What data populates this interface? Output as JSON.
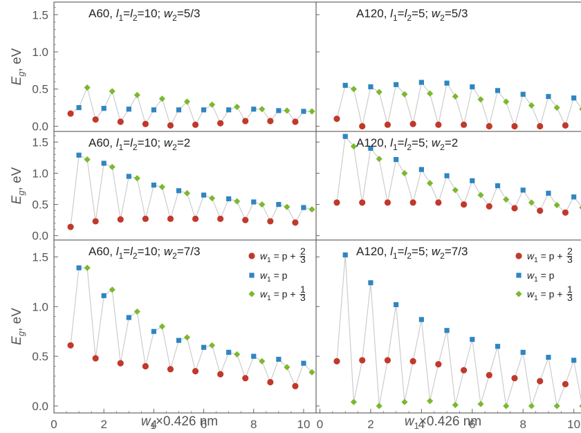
{
  "colors": {
    "p_plus_2_3": "#c0392b",
    "p": "#2e86c1",
    "p_plus_1_3": "#7cb82f",
    "line": "#cccccc"
  },
  "legend": [
    {
      "key": "p_plus_2_3",
      "shape": "circle",
      "prefix": "w",
      "sub": "1",
      "mid": " = p + ",
      "num": "2",
      "den": "3"
    },
    {
      "key": "p",
      "shape": "square",
      "prefix": "w",
      "sub": "1",
      "mid": " = p",
      "num": "",
      "den": ""
    },
    {
      "key": "p_plus_1_3",
      "shape": "diamond",
      "prefix": "w",
      "sub": "1",
      "mid": " = p + ",
      "num": "1",
      "den": "3"
    }
  ],
  "chart_data": [
    {
      "type": "line",
      "panel": "top-left",
      "title": "A60, l1=l2=10; w2=5/3",
      "ylabel": "Eg, eV",
      "xlabel": "",
      "xlim": [
        0,
        10.5
      ],
      "ylim": [
        -0.07,
        1.67
      ],
      "xticks": [],
      "yticks": [
        "0.0",
        "0.5",
        "1.0",
        "1.5"
      ],
      "points": [
        {
          "x": 0.667,
          "y": 0.17,
          "s": "p_plus_2_3"
        },
        {
          "x": 1.0,
          "y": 0.25,
          "s": "p"
        },
        {
          "x": 1.333,
          "y": 0.52,
          "s": "p_plus_1_3"
        },
        {
          "x": 1.667,
          "y": 0.09,
          "s": "p_plus_2_3"
        },
        {
          "x": 2.0,
          "y": 0.24,
          "s": "p"
        },
        {
          "x": 2.333,
          "y": 0.47,
          "s": "p_plus_1_3"
        },
        {
          "x": 2.667,
          "y": 0.06,
          "s": "p_plus_2_3"
        },
        {
          "x": 3.0,
          "y": 0.23,
          "s": "p"
        },
        {
          "x": 3.333,
          "y": 0.42,
          "s": "p_plus_1_3"
        },
        {
          "x": 3.667,
          "y": 0.03,
          "s": "p_plus_2_3"
        },
        {
          "x": 4.0,
          "y": 0.22,
          "s": "p"
        },
        {
          "x": 4.333,
          "y": 0.37,
          "s": "p_plus_1_3"
        },
        {
          "x": 4.667,
          "y": 0.01,
          "s": "p_plus_2_3"
        },
        {
          "x": 5.0,
          "y": 0.22,
          "s": "p"
        },
        {
          "x": 5.333,
          "y": 0.33,
          "s": "p_plus_1_3"
        },
        {
          "x": 5.667,
          "y": 0.02,
          "s": "p_plus_2_3"
        },
        {
          "x": 6.0,
          "y": 0.22,
          "s": "p"
        },
        {
          "x": 6.333,
          "y": 0.29,
          "s": "p_plus_1_3"
        },
        {
          "x": 6.667,
          "y": 0.04,
          "s": "p_plus_2_3"
        },
        {
          "x": 7.0,
          "y": 0.22,
          "s": "p"
        },
        {
          "x": 7.333,
          "y": 0.26,
          "s": "p_plus_1_3"
        },
        {
          "x": 7.667,
          "y": 0.07,
          "s": "p_plus_2_3"
        },
        {
          "x": 8.0,
          "y": 0.23,
          "s": "p"
        },
        {
          "x": 8.333,
          "y": 0.23,
          "s": "p_plus_1_3"
        },
        {
          "x": 8.667,
          "y": 0.07,
          "s": "p_plus_2_3"
        },
        {
          "x": 9.0,
          "y": 0.21,
          "s": "p"
        },
        {
          "x": 9.333,
          "y": 0.21,
          "s": "p_plus_1_3"
        },
        {
          "x": 9.667,
          "y": 0.06,
          "s": "p_plus_2_3"
        },
        {
          "x": 10.0,
          "y": 0.2,
          "s": "p"
        },
        {
          "x": 10.333,
          "y": 0.2,
          "s": "p_plus_1_3"
        }
      ]
    },
    {
      "type": "line",
      "panel": "top-right",
      "title": "A120, l1=l2=5; w2=5/3",
      "ylabel": "",
      "xlabel": "",
      "xlim": [
        -0.15,
        10.5
      ],
      "ylim": [
        -0.07,
        1.67
      ],
      "xticks": [],
      "yticks": [],
      "points": [
        {
          "x": 0.667,
          "y": 0.1,
          "s": "p_plus_2_3"
        },
        {
          "x": 1.0,
          "y": 0.55,
          "s": "p"
        },
        {
          "x": 1.333,
          "y": 0.5,
          "s": "p_plus_1_3"
        },
        {
          "x": 1.667,
          "y": 0.0,
          "s": "p_plus_2_3"
        },
        {
          "x": 2.0,
          "y": 0.53,
          "s": "p"
        },
        {
          "x": 2.333,
          "y": 0.46,
          "s": "p_plus_1_3"
        },
        {
          "x": 2.667,
          "y": 0.02,
          "s": "p_plus_2_3"
        },
        {
          "x": 3.0,
          "y": 0.56,
          "s": "p"
        },
        {
          "x": 3.333,
          "y": 0.43,
          "s": "p_plus_1_3"
        },
        {
          "x": 3.667,
          "y": 0.03,
          "s": "p_plus_2_3"
        },
        {
          "x": 4.0,
          "y": 0.59,
          "s": "p"
        },
        {
          "x": 4.333,
          "y": 0.44,
          "s": "p_plus_1_3"
        },
        {
          "x": 4.667,
          "y": 0.02,
          "s": "p_plus_2_3"
        },
        {
          "x": 5.0,
          "y": 0.58,
          "s": "p"
        },
        {
          "x": 5.333,
          "y": 0.4,
          "s": "p_plus_1_3"
        },
        {
          "x": 5.667,
          "y": 0.02,
          "s": "p_plus_2_3"
        },
        {
          "x": 6.0,
          "y": 0.53,
          "s": "p"
        },
        {
          "x": 6.333,
          "y": 0.36,
          "s": "p_plus_1_3"
        },
        {
          "x": 6.667,
          "y": 0.0,
          "s": "p_plus_2_3"
        },
        {
          "x": 7.0,
          "y": 0.48,
          "s": "p"
        },
        {
          "x": 7.333,
          "y": 0.33,
          "s": "p_plus_1_3"
        },
        {
          "x": 7.667,
          "y": 0.0,
          "s": "p_plus_2_3"
        },
        {
          "x": 8.0,
          "y": 0.43,
          "s": "p"
        },
        {
          "x": 8.333,
          "y": 0.28,
          "s": "p_plus_1_3"
        },
        {
          "x": 8.667,
          "y": 0.0,
          "s": "p_plus_2_3"
        },
        {
          "x": 9.0,
          "y": 0.4,
          "s": "p"
        },
        {
          "x": 9.333,
          "y": 0.25,
          "s": "p_plus_1_3"
        },
        {
          "x": 9.667,
          "y": 0.01,
          "s": "p_plus_2_3"
        },
        {
          "x": 10.0,
          "y": 0.38,
          "s": "p"
        },
        {
          "x": 10.333,
          "y": 0.23,
          "s": "p_plus_1_3"
        }
      ]
    },
    {
      "type": "line",
      "panel": "mid-left",
      "title": "A60, l1=l2=10; w2=2",
      "ylabel": "Eg, eV",
      "xlabel": "",
      "xlim": [
        0,
        10.5
      ],
      "ylim": [
        -0.07,
        1.67
      ],
      "xticks": [],
      "yticks": [
        "0.0",
        "0.5",
        "1.0",
        "1.5"
      ],
      "points": [
        {
          "x": 0.667,
          "y": 0.14,
          "s": "p_plus_2_3"
        },
        {
          "x": 1.0,
          "y": 1.29,
          "s": "p"
        },
        {
          "x": 1.333,
          "y": 1.22,
          "s": "p_plus_1_3"
        },
        {
          "x": 1.667,
          "y": 0.23,
          "s": "p_plus_2_3"
        },
        {
          "x": 2.0,
          "y": 1.16,
          "s": "p"
        },
        {
          "x": 2.333,
          "y": 1.1,
          "s": "p_plus_1_3"
        },
        {
          "x": 2.667,
          "y": 0.26,
          "s": "p_plus_2_3"
        },
        {
          "x": 3.0,
          "y": 0.95,
          "s": "p"
        },
        {
          "x": 3.333,
          "y": 0.92,
          "s": "p_plus_1_3"
        },
        {
          "x": 3.667,
          "y": 0.27,
          "s": "p_plus_2_3"
        },
        {
          "x": 4.0,
          "y": 0.81,
          "s": "p"
        },
        {
          "x": 4.333,
          "y": 0.78,
          "s": "p_plus_1_3"
        },
        {
          "x": 4.667,
          "y": 0.27,
          "s": "p_plus_2_3"
        },
        {
          "x": 5.0,
          "y": 0.72,
          "s": "p"
        },
        {
          "x": 5.333,
          "y": 0.68,
          "s": "p_plus_1_3"
        },
        {
          "x": 5.667,
          "y": 0.27,
          "s": "p_plus_2_3"
        },
        {
          "x": 6.0,
          "y": 0.65,
          "s": "p"
        },
        {
          "x": 6.333,
          "y": 0.6,
          "s": "p_plus_1_3"
        },
        {
          "x": 6.667,
          "y": 0.27,
          "s": "p_plus_2_3"
        },
        {
          "x": 7.0,
          "y": 0.59,
          "s": "p"
        },
        {
          "x": 7.333,
          "y": 0.55,
          "s": "p_plus_1_3"
        },
        {
          "x": 7.667,
          "y": 0.25,
          "s": "p_plus_2_3"
        },
        {
          "x": 8.0,
          "y": 0.54,
          "s": "p"
        },
        {
          "x": 8.333,
          "y": 0.5,
          "s": "p_plus_1_3"
        },
        {
          "x": 8.667,
          "y": 0.23,
          "s": "p_plus_2_3"
        },
        {
          "x": 9.0,
          "y": 0.5,
          "s": "p"
        },
        {
          "x": 9.333,
          "y": 0.46,
          "s": "p_plus_1_3"
        },
        {
          "x": 9.667,
          "y": 0.21,
          "s": "p_plus_2_3"
        },
        {
          "x": 10.0,
          "y": 0.45,
          "s": "p"
        },
        {
          "x": 10.333,
          "y": 0.42,
          "s": "p_plus_1_3"
        }
      ]
    },
    {
      "type": "line",
      "panel": "mid-right",
      "title": "A120, l1=l2=5; w2=2",
      "ylabel": "",
      "xlabel": "",
      "xlim": [
        -0.15,
        10.5
      ],
      "ylim": [
        -0.07,
        1.67
      ],
      "xticks": [],
      "yticks": [],
      "points": [
        {
          "x": 0.667,
          "y": 0.53,
          "s": "p_plus_2_3"
        },
        {
          "x": 1.0,
          "y": 1.59,
          "s": "p"
        },
        {
          "x": 1.333,
          "y": 1.43,
          "s": "p_plus_1_3"
        },
        {
          "x": 1.667,
          "y": 0.53,
          "s": "p_plus_2_3"
        },
        {
          "x": 2.0,
          "y": 1.4,
          "s": "p"
        },
        {
          "x": 2.333,
          "y": 1.23,
          "s": "p_plus_1_3"
        },
        {
          "x": 2.667,
          "y": 0.53,
          "s": "p_plus_2_3"
        },
        {
          "x": 3.0,
          "y": 1.22,
          "s": "p"
        },
        {
          "x": 3.333,
          "y": 1.0,
          "s": "p_plus_1_3"
        },
        {
          "x": 3.667,
          "y": 0.53,
          "s": "p_plus_2_3"
        },
        {
          "x": 4.0,
          "y": 1.06,
          "s": "p"
        },
        {
          "x": 4.333,
          "y": 0.84,
          "s": "p_plus_1_3"
        },
        {
          "x": 4.667,
          "y": 0.53,
          "s": "p_plus_2_3"
        },
        {
          "x": 5.0,
          "y": 0.96,
          "s": "p"
        },
        {
          "x": 5.333,
          "y": 0.73,
          "s": "p_plus_1_3"
        },
        {
          "x": 5.667,
          "y": 0.5,
          "s": "p_plus_2_3"
        },
        {
          "x": 6.0,
          "y": 0.88,
          "s": "p"
        },
        {
          "x": 6.333,
          "y": 0.65,
          "s": "p_plus_1_3"
        },
        {
          "x": 6.667,
          "y": 0.47,
          "s": "p_plus_2_3"
        },
        {
          "x": 7.0,
          "y": 0.8,
          "s": "p"
        },
        {
          "x": 7.333,
          "y": 0.58,
          "s": "p_plus_1_3"
        },
        {
          "x": 7.667,
          "y": 0.44,
          "s": "p_plus_2_3"
        },
        {
          "x": 8.0,
          "y": 0.73,
          "s": "p"
        },
        {
          "x": 8.333,
          "y": 0.53,
          "s": "p_plus_1_3"
        },
        {
          "x": 8.667,
          "y": 0.4,
          "s": "p_plus_2_3"
        },
        {
          "x": 9.0,
          "y": 0.68,
          "s": "p"
        },
        {
          "x": 9.333,
          "y": 0.49,
          "s": "p_plus_1_3"
        },
        {
          "x": 9.667,
          "y": 0.37,
          "s": "p_plus_2_3"
        },
        {
          "x": 10.0,
          "y": 0.62,
          "s": "p"
        },
        {
          "x": 10.333,
          "y": 0.45,
          "s": "p_plus_1_3"
        }
      ]
    },
    {
      "type": "line",
      "panel": "bottom-left",
      "title": "A60, l1=l2=10; w2=7/3",
      "ylabel": "Eg, eV",
      "xlabel": "w1×0.426 nm",
      "xlim": [
        0,
        10.5
      ],
      "ylim": [
        -0.07,
        1.67
      ],
      "xticks": [
        "0",
        "2",
        "4",
        "6",
        "8",
        "10"
      ],
      "yticks": [
        "0.0",
        "0.5",
        "1.0",
        "1.5"
      ],
      "points": [
        {
          "x": 0.667,
          "y": 0.61,
          "s": "p_plus_2_3"
        },
        {
          "x": 1.0,
          "y": 1.39,
          "s": "p"
        },
        {
          "x": 1.333,
          "y": 1.39,
          "s": "p_plus_1_3"
        },
        {
          "x": 1.667,
          "y": 0.48,
          "s": "p_plus_2_3"
        },
        {
          "x": 2.0,
          "y": 1.11,
          "s": "p"
        },
        {
          "x": 2.333,
          "y": 1.17,
          "s": "p_plus_1_3"
        },
        {
          "x": 2.667,
          "y": 0.43,
          "s": "p_plus_2_3"
        },
        {
          "x": 3.0,
          "y": 0.89,
          "s": "p"
        },
        {
          "x": 3.333,
          "y": 0.95,
          "s": "p_plus_1_3"
        },
        {
          "x": 3.667,
          "y": 0.4,
          "s": "p_plus_2_3"
        },
        {
          "x": 4.0,
          "y": 0.75,
          "s": "p"
        },
        {
          "x": 4.333,
          "y": 0.8,
          "s": "p_plus_1_3"
        },
        {
          "x": 4.667,
          "y": 0.37,
          "s": "p_plus_2_3"
        },
        {
          "x": 5.0,
          "y": 0.66,
          "s": "p"
        },
        {
          "x": 5.333,
          "y": 0.69,
          "s": "p_plus_1_3"
        },
        {
          "x": 5.667,
          "y": 0.35,
          "s": "p_plus_2_3"
        },
        {
          "x": 6.0,
          "y": 0.59,
          "s": "p"
        },
        {
          "x": 6.333,
          "y": 0.61,
          "s": "p_plus_1_3"
        },
        {
          "x": 6.667,
          "y": 0.32,
          "s": "p_plus_2_3"
        },
        {
          "x": 7.0,
          "y": 0.54,
          "s": "p"
        },
        {
          "x": 7.333,
          "y": 0.52,
          "s": "p_plus_1_3"
        },
        {
          "x": 7.667,
          "y": 0.28,
          "s": "p_plus_2_3"
        },
        {
          "x": 8.0,
          "y": 0.5,
          "s": "p"
        },
        {
          "x": 8.333,
          "y": 0.45,
          "s": "p_plus_1_3"
        },
        {
          "x": 8.667,
          "y": 0.24,
          "s": "p_plus_2_3"
        },
        {
          "x": 9.0,
          "y": 0.47,
          "s": "p"
        },
        {
          "x": 9.333,
          "y": 0.39,
          "s": "p_plus_1_3"
        },
        {
          "x": 9.667,
          "y": 0.2,
          "s": "p_plus_2_3"
        },
        {
          "x": 10.0,
          "y": 0.43,
          "s": "p"
        },
        {
          "x": 10.333,
          "y": 0.34,
          "s": "p_plus_1_3"
        }
      ]
    },
    {
      "type": "line",
      "panel": "bottom-right",
      "title": "A120, l1=l2=5; w2=7/3",
      "ylabel": "",
      "xlabel": "w1×0.426 nm",
      "xlim": [
        -0.15,
        10.5
      ],
      "ylim": [
        -0.07,
        1.67
      ],
      "xticks": [
        "0",
        "2",
        "4",
        "6",
        "8",
        "10"
      ],
      "yticks": [],
      "points": [
        {
          "x": 0.667,
          "y": 0.45,
          "s": "p_plus_2_3"
        },
        {
          "x": 1.0,
          "y": 1.52,
          "s": "p"
        },
        {
          "x": 1.333,
          "y": 0.04,
          "s": "p_plus_1_3"
        },
        {
          "x": 1.667,
          "y": 0.46,
          "s": "p_plus_2_3"
        },
        {
          "x": 2.0,
          "y": 1.24,
          "s": "p"
        },
        {
          "x": 2.333,
          "y": 0.0,
          "s": "p_plus_1_3"
        },
        {
          "x": 2.667,
          "y": 0.46,
          "s": "p_plus_2_3"
        },
        {
          "x": 3.0,
          "y": 1.02,
          "s": "p"
        },
        {
          "x": 3.333,
          "y": 0.04,
          "s": "p_plus_1_3"
        },
        {
          "x": 3.667,
          "y": 0.45,
          "s": "p_plus_2_3"
        },
        {
          "x": 4.0,
          "y": 0.87,
          "s": "p"
        },
        {
          "x": 4.333,
          "y": 0.05,
          "s": "p_plus_1_3"
        },
        {
          "x": 4.667,
          "y": 0.42,
          "s": "p_plus_2_3"
        },
        {
          "x": 5.0,
          "y": 0.76,
          "s": "p"
        },
        {
          "x": 5.333,
          "y": 0.01,
          "s": "p_plus_1_3"
        },
        {
          "x": 5.667,
          "y": 0.36,
          "s": "p_plus_2_3"
        },
        {
          "x": 6.0,
          "y": 0.67,
          "s": "p"
        },
        {
          "x": 6.333,
          "y": 0.02,
          "s": "p_plus_1_3"
        },
        {
          "x": 6.667,
          "y": 0.31,
          "s": "p_plus_2_3"
        },
        {
          "x": 7.0,
          "y": 0.6,
          "s": "p"
        },
        {
          "x": 7.333,
          "y": 0.0,
          "s": "p_plus_1_3"
        },
        {
          "x": 7.667,
          "y": 0.28,
          "s": "p_plus_2_3"
        },
        {
          "x": 8.0,
          "y": 0.54,
          "s": "p"
        },
        {
          "x": 8.333,
          "y": 0.0,
          "s": "p_plus_1_3"
        },
        {
          "x": 8.667,
          "y": 0.25,
          "s": "p_plus_2_3"
        },
        {
          "x": 9.0,
          "y": 0.49,
          "s": "p"
        },
        {
          "x": 9.333,
          "y": 0.0,
          "s": "p_plus_1_3"
        },
        {
          "x": 9.667,
          "y": 0.22,
          "s": "p_plus_2_3"
        },
        {
          "x": 10.0,
          "y": 0.46,
          "s": "p"
        },
        {
          "x": 10.333,
          "y": 0.0,
          "s": "p_plus_1_3"
        }
      ]
    }
  ]
}
